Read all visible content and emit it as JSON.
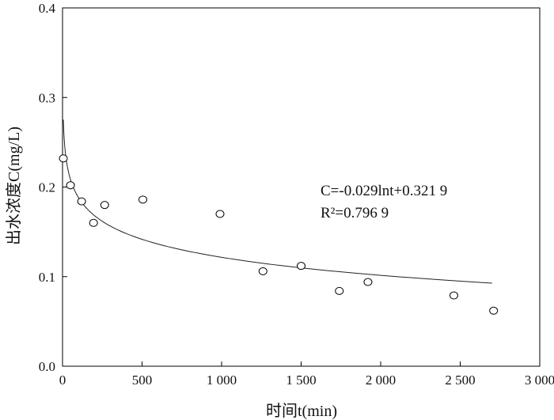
{
  "chart_data": {
    "type": "scatter",
    "title": "",
    "xlabel": "时间t(min)",
    "ylabel": "出水浓度C(mg/L)",
    "xlim": [
      0,
      3000
    ],
    "ylim": [
      0,
      0.4
    ],
    "xticks": [
      0,
      500,
      1000,
      1500,
      2000,
      2500,
      3000
    ],
    "xtick_labels": [
      "0",
      "500",
      "1 000",
      "1 500",
      "2 000",
      "2 500",
      "3 000"
    ],
    "yticks": [
      0,
      0.1,
      0.2,
      0.3,
      0.4
    ],
    "ytick_labels": [
      "0.0",
      "0.1",
      "0.2",
      "0.3",
      "0.4"
    ],
    "grid": false,
    "points": [
      {
        "x": 5,
        "y": 0.232
      },
      {
        "x": 50,
        "y": 0.202
      },
      {
        "x": 120,
        "y": 0.184
      },
      {
        "x": 195,
        "y": 0.16
      },
      {
        "x": 265,
        "y": 0.18
      },
      {
        "x": 505,
        "y": 0.186
      },
      {
        "x": 990,
        "y": 0.17
      },
      {
        "x": 1260,
        "y": 0.106
      },
      {
        "x": 1500,
        "y": 0.112
      },
      {
        "x": 1740,
        "y": 0.084
      },
      {
        "x": 1920,
        "y": 0.094
      },
      {
        "x": 2460,
        "y": 0.079
      },
      {
        "x": 2710,
        "y": 0.062
      }
    ],
    "fit": {
      "model": "C = a*ln(t) + b",
      "a": -0.029,
      "b": 0.3219,
      "t_range": [
        5,
        2700
      ],
      "equation_text": "C=-0.029lnt+0.321 9",
      "r2_text": "R²=0.796 9"
    }
  }
}
